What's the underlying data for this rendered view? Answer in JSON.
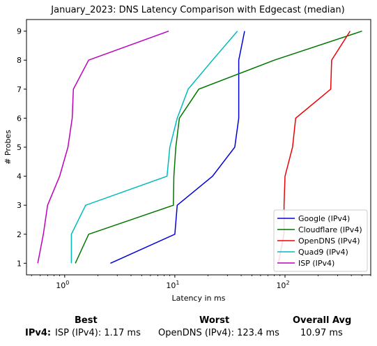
{
  "chart_data": {
    "type": "line",
    "title": "January_2023: DNS Latency Comparison with Edgecast (median)",
    "xlabel": "Latency in ms",
    "ylabel": "# Probes",
    "xscale": "log",
    "xlim": [
      0.45,
      600
    ],
    "ylim": [
      0.6,
      9.4
    ],
    "x_ticks": [
      {
        "value": 1,
        "base": "10",
        "exp": "0"
      },
      {
        "value": 10,
        "base": "10",
        "exp": "1"
      },
      {
        "value": 100,
        "base": "10",
        "exp": "2"
      }
    ],
    "y_ticks": [
      1,
      2,
      3,
      4,
      5,
      6,
      7,
      8,
      9
    ],
    "grid": false,
    "legend_position": "bottom-right",
    "series": [
      {
        "name": "Google (IPv4)",
        "color": "#0000dd",
        "points": [
          [
            2.6,
            1
          ],
          [
            10,
            2
          ],
          [
            10.5,
            3
          ],
          [
            22,
            4
          ],
          [
            35,
            5
          ],
          [
            38,
            6
          ],
          [
            38,
            7
          ],
          [
            38,
            8
          ],
          [
            43,
            9
          ]
        ]
      },
      {
        "name": "Cloudflare (IPv4)",
        "color": "#007700",
        "points": [
          [
            1.25,
            1
          ],
          [
            1.65,
            2
          ],
          [
            9.7,
            3
          ],
          [
            9.8,
            4
          ],
          [
            10.2,
            5
          ],
          [
            11,
            6
          ],
          [
            16.5,
            7
          ],
          [
            80,
            8
          ],
          [
            500,
            9
          ]
        ]
      },
      {
        "name": "OpenDNS (IPv4)",
        "color": "#ee0000",
        "points": [
          [
            87,
            1
          ],
          [
            98,
            2
          ],
          [
            98,
            3
          ],
          [
            100,
            4
          ],
          [
            117,
            5
          ],
          [
            125,
            6
          ],
          [
            260,
            7
          ],
          [
            265,
            8
          ],
          [
            390,
            9
          ]
        ]
      },
      {
        "name": "Quad9 (IPv4)",
        "color": "#00bbbb",
        "points": [
          [
            1.15,
            1
          ],
          [
            1.15,
            2
          ],
          [
            1.55,
            3
          ],
          [
            8.5,
            4
          ],
          [
            9,
            5
          ],
          [
            10.5,
            6
          ],
          [
            13.2,
            7
          ],
          [
            22,
            8
          ],
          [
            37,
            9
          ]
        ]
      },
      {
        "name": "ISP (IPv4)",
        "color": "#bb00bb",
        "points": [
          [
            0.57,
            1
          ],
          [
            0.64,
            2
          ],
          [
            0.7,
            3
          ],
          [
            0.9,
            4
          ],
          [
            1.07,
            5
          ],
          [
            1.17,
            6
          ],
          [
            1.2,
            7
          ],
          [
            1.65,
            8
          ],
          [
            8.8,
            9
          ]
        ]
      }
    ]
  },
  "summary": {
    "best_header": "Best",
    "worst_header": "Worst",
    "avg_header": "Overall Avg",
    "row_label": "IPv4:",
    "best_value": "ISP (IPv4): 1.17 ms",
    "worst_value": "OpenDNS (IPv4): 123.4 ms",
    "avg_value": "10.97 ms"
  }
}
